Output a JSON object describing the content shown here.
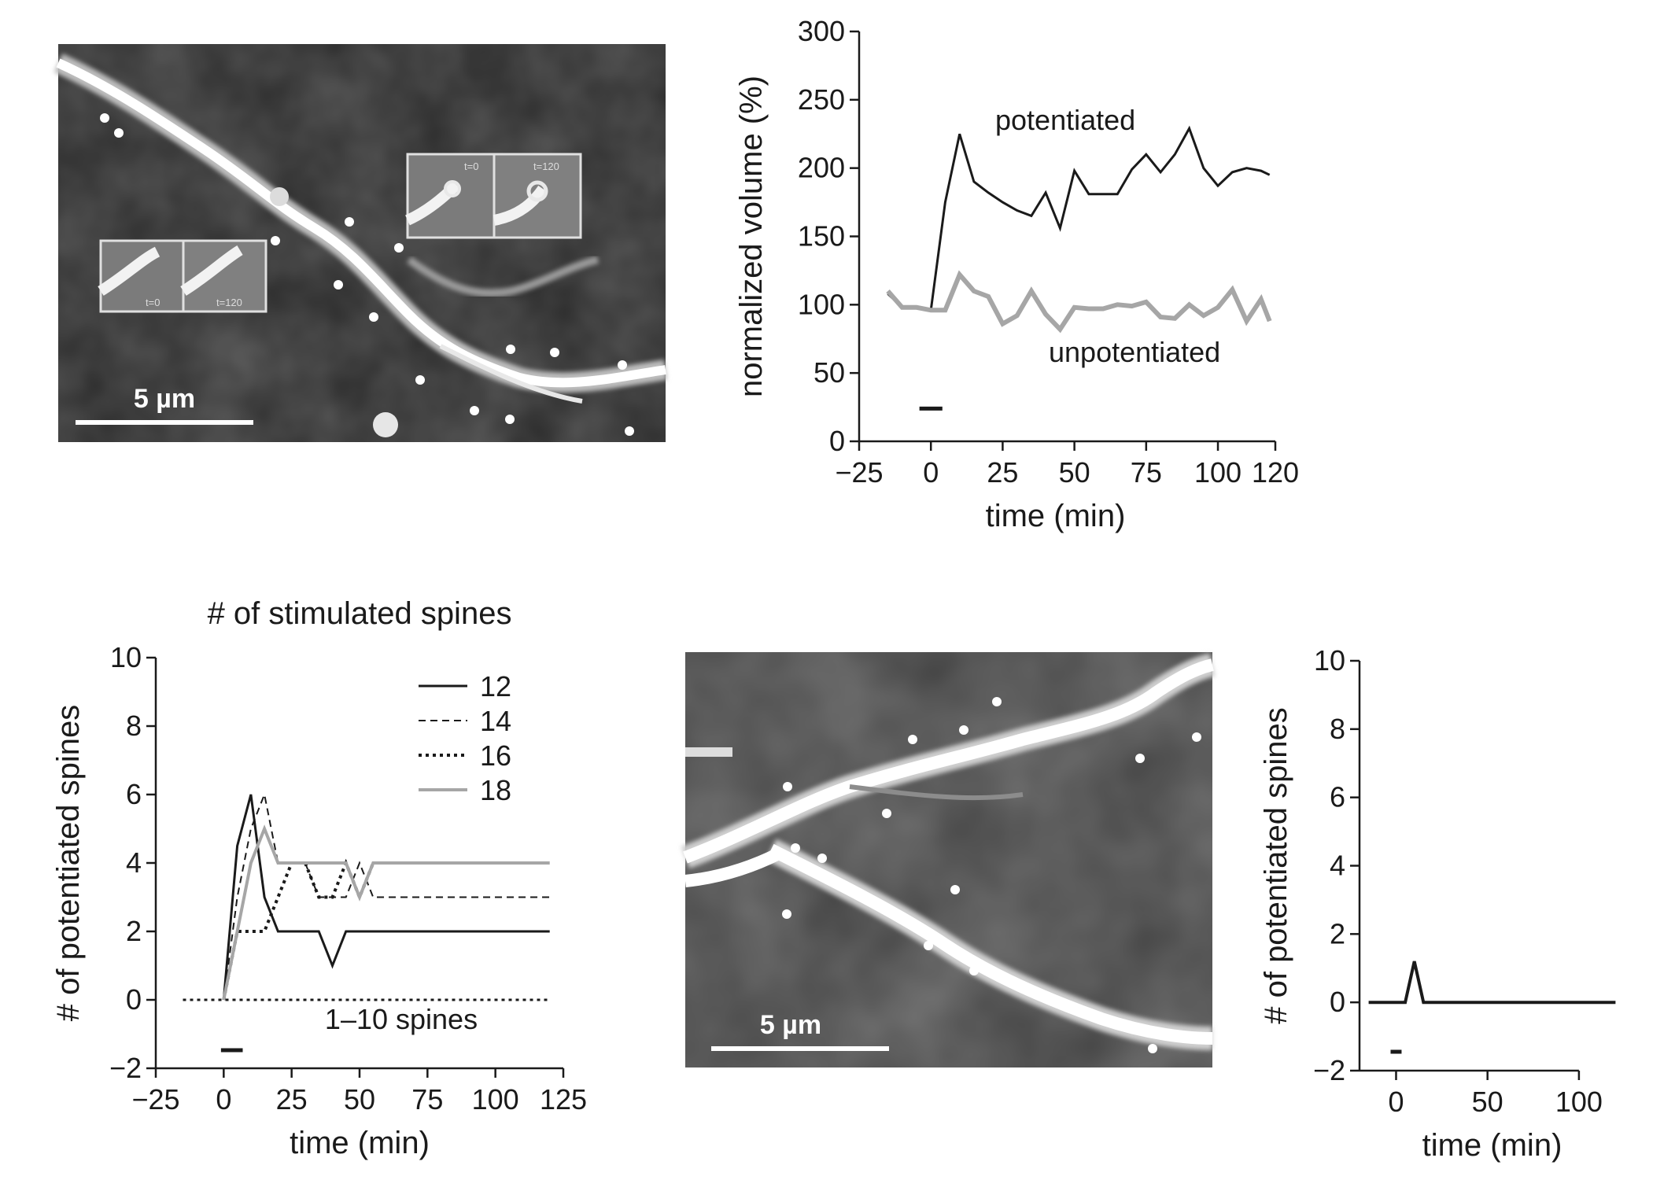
{
  "micrographs": [
    {
      "scale_bar_label": "5 µm",
      "insets": [
        {
          "left_label": "t=0",
          "right_label": "t=120"
        },
        {
          "left_label": "t=0",
          "right_label": "t=120"
        }
      ]
    },
    {
      "scale_bar_label": "5 µm"
    }
  ],
  "chart_data": [
    {
      "type": "line",
      "title": "",
      "xlabel": "time (min)",
      "ylabel": "normalized volume (%)",
      "xlim": [
        -25,
        120
      ],
      "ylim": [
        0,
        300
      ],
      "xticks": [
        -25,
        0,
        25,
        50,
        75,
        100,
        120
      ],
      "xtick_labels": [
        "−25",
        "0",
        "25",
        "50",
        "75",
        "100",
        "120"
      ],
      "yticks": [
        0,
        50,
        100,
        150,
        200,
        250,
        300
      ],
      "ytick_labels": [
        "0",
        "50",
        "100",
        "150",
        "200",
        "250",
        "300"
      ],
      "stimulus_bar": [
        -4,
        4
      ],
      "series": [
        {
          "name": "potentiated",
          "color": "#1a1a1a",
          "style": "solid",
          "x": [
            -15,
            -10,
            -5,
            0,
            5,
            10,
            15,
            20,
            25,
            30,
            35,
            40,
            45,
            50,
            55,
            60,
            65,
            70,
            75,
            80,
            85,
            90,
            95,
            100,
            105,
            110,
            115,
            118
          ],
          "y": [
            108,
            98,
            98,
            96,
            175,
            225,
            190,
            182,
            175,
            169,
            165,
            182,
            156,
            198,
            181,
            181,
            181,
            199,
            210,
            197,
            210,
            229,
            200,
            187,
            197,
            200,
            198,
            195
          ]
        },
        {
          "name": "unpotentiated",
          "color": "#a6a6a6",
          "style": "solid",
          "x": [
            -15,
            -10,
            -5,
            0,
            5,
            10,
            15,
            20,
            25,
            30,
            35,
            40,
            45,
            50,
            55,
            60,
            65,
            70,
            75,
            80,
            85,
            90,
            95,
            100,
            105,
            110,
            115,
            118
          ],
          "y": [
            110,
            98,
            98,
            96,
            96,
            122,
            110,
            106,
            86,
            92,
            110,
            93,
            82,
            98,
            97,
            97,
            100,
            99,
            102,
            91,
            90,
            100,
            92,
            98,
            111,
            88,
            104,
            88
          ]
        }
      ]
    },
    {
      "type": "line",
      "title": "# of stimulated spines",
      "xlabel": "time (min)",
      "ylabel": "# of potentiated spines",
      "xlim": [
        -25,
        125
      ],
      "ylim": [
        -2,
        10
      ],
      "xticks": [
        -25,
        0,
        25,
        50,
        75,
        100,
        125
      ],
      "xtick_labels": [
        "−25",
        "0",
        "25",
        "50",
        "75",
        "100",
        "125"
      ],
      "yticks": [
        -2,
        0,
        2,
        4,
        6,
        8,
        10
      ],
      "ytick_labels": [
        "−2",
        "0",
        "2",
        "4",
        "6",
        "8",
        "10"
      ],
      "stimulus_bar": [
        -1,
        7
      ],
      "annotation": "1–10 spines",
      "legend_position": "top-right",
      "series": [
        {
          "name": "12",
          "color": "#1a1a1a",
          "style": "solid",
          "width": 3,
          "x": [
            0,
            5,
            10,
            15,
            20,
            25,
            30,
            35,
            40,
            45,
            50,
            55,
            60,
            70,
            80,
            90,
            100,
            110,
            120
          ],
          "y": [
            0,
            4.5,
            6,
            3,
            2,
            2,
            2,
            2,
            1,
            2,
            2,
            2,
            2,
            2,
            2,
            2,
            2,
            2,
            2
          ]
        },
        {
          "name": "14",
          "color": "#1a1a1a",
          "style": "dashed",
          "width": 2,
          "x": [
            0,
            5,
            10,
            15,
            20,
            25,
            30,
            35,
            40,
            45,
            50,
            55,
            60,
            70,
            80,
            90,
            100,
            110,
            120
          ],
          "y": [
            0,
            3,
            5,
            6,
            4,
            4,
            4,
            3,
            3,
            3,
            4,
            3,
            3,
            3,
            3,
            3,
            3,
            3,
            3
          ]
        },
        {
          "name": "16",
          "color": "#1a1a1a",
          "style": "dotted",
          "width": 4,
          "x": [
            0,
            5,
            10,
            15,
            20,
            25,
            30,
            35,
            40,
            45,
            50,
            55,
            60,
            70,
            80,
            90,
            100,
            110,
            120
          ],
          "y": [
            0,
            2,
            2,
            2,
            3,
            4,
            4,
            3,
            3,
            4,
            3,
            4,
            4,
            4,
            4,
            4,
            4,
            4,
            4
          ]
        },
        {
          "name": "18",
          "color": "#a6a6a6",
          "style": "solid",
          "width": 4,
          "x": [
            0,
            5,
            10,
            15,
            20,
            25,
            30,
            35,
            40,
            45,
            50,
            55,
            60,
            70,
            80,
            90,
            100,
            110,
            120
          ],
          "y": [
            0,
            2,
            4,
            5,
            4,
            4,
            4,
            4,
            4,
            4,
            3,
            4,
            4,
            4,
            4,
            4,
            4,
            4,
            4
          ]
        },
        {
          "name": "",
          "color": "#1a1a1a",
          "style": "dotted",
          "width": 3,
          "x": [
            -15,
            120
          ],
          "y": [
            0,
            0
          ]
        }
      ]
    },
    {
      "type": "line",
      "title": "",
      "xlabel": "time (min)",
      "ylabel": "# of potentiated spines",
      "xlim": [
        -20,
        125
      ],
      "ylim": [
        -2,
        10
      ],
      "xticks": [
        0,
        50,
        100
      ],
      "xtick_labels": [
        "0",
        "50",
        "100"
      ],
      "yticks": [
        -2,
        0,
        2,
        4,
        6,
        8,
        10
      ],
      "ytick_labels": [
        "−2",
        "0",
        "2",
        "4",
        "6",
        "8",
        "10"
      ],
      "stimulus_bar": [
        -3,
        3
      ],
      "series": [
        {
          "name": "",
          "color": "#1a1a1a",
          "style": "solid",
          "width": 4,
          "x": [
            -15,
            5,
            10,
            15,
            20,
            120
          ],
          "y": [
            0,
            0,
            1.2,
            0,
            0,
            0
          ]
        }
      ]
    }
  ]
}
